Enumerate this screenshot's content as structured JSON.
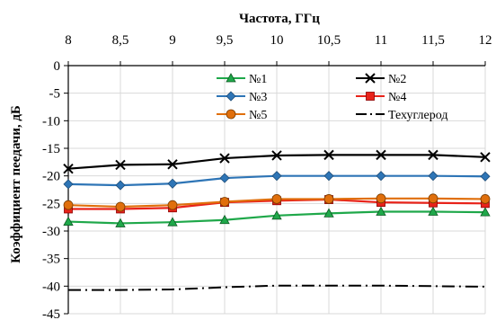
{
  "chart_data": {
    "type": "line",
    "xlabel": "Частота, ГГц",
    "ylabel": "Коэффициент пеедачи, дБ",
    "x": [
      8,
      8.5,
      9,
      9.5,
      10,
      10.5,
      11,
      11.5,
      12
    ],
    "x_tick_labels": [
      "8",
      "8,5",
      "9",
      "9,5",
      "10",
      "10,5",
      "11",
      "11,5",
      "12"
    ],
    "y_tick_labels": [
      "0",
      "-5",
      "-10",
      "-15",
      "-20",
      "-25",
      "-30",
      "-35",
      "-40",
      "-45"
    ],
    "xlim": [
      8,
      12
    ],
    "ylim": [
      -45,
      0
    ],
    "x_axis_position": "top",
    "grid": true,
    "legend_position": "top-right",
    "series": [
      {
        "name": "№1",
        "color": "#1fa84a",
        "marker": "triangle",
        "dash": "solid",
        "values": [
          -28.3,
          -28.6,
          -28.4,
          -28.0,
          -27.2,
          -26.8,
          -26.5,
          -26.5,
          -26.6
        ]
      },
      {
        "name": "№2",
        "color": "#000000",
        "marker": "x",
        "dash": "solid",
        "values": [
          -18.7,
          -18.0,
          -17.9,
          -16.8,
          -16.3,
          -16.2,
          -16.2,
          -16.2,
          -16.6
        ]
      },
      {
        "name": "№3",
        "color": "#2e75b6",
        "marker": "diamond",
        "dash": "solid",
        "values": [
          -21.5,
          -21.7,
          -21.4,
          -20.4,
          -20.0,
          -20.0,
          -20.0,
          -20.0,
          -20.1
        ]
      },
      {
        "name": "№4",
        "color": "#e8231a",
        "marker": "square",
        "dash": "solid",
        "values": [
          -26.0,
          -26.0,
          -25.8,
          -24.8,
          -24.5,
          -24.3,
          -24.8,
          -24.9,
          -25.0
        ]
      },
      {
        "name": "№5",
        "color": "#e06f0c",
        "marker": "circle",
        "dash": "solid",
        "values": [
          -25.3,
          -25.6,
          -25.3,
          -24.7,
          -24.2,
          -24.2,
          -24.1,
          -24.1,
          -24.2
        ]
      },
      {
        "name": "Техуглерод",
        "color": "#000000",
        "marker": "none",
        "dash": "dashdot",
        "values": [
          -40.7,
          -40.7,
          -40.6,
          -40.2,
          -39.9,
          -39.9,
          -39.9,
          -40.0,
          -40.1
        ]
      }
    ]
  }
}
